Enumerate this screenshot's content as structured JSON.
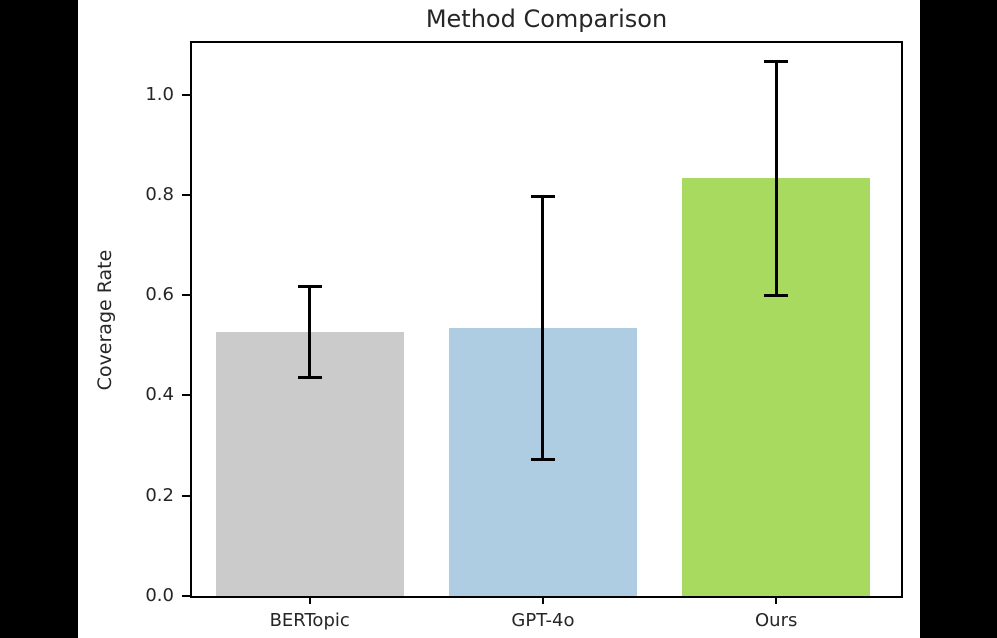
{
  "chart_data": {
    "type": "bar",
    "title": "Method Comparison",
    "xlabel": "",
    "ylabel": "Coverage Rate",
    "categories": [
      "BERTopic",
      "GPT-4o",
      "Ours"
    ],
    "values": [
      0.527,
      0.534,
      0.833
    ],
    "yerr": [
      0.092,
      0.263,
      0.234
    ],
    "bar_colors": [
      "#cbcbcb",
      "#aecde2",
      "#a9da60"
    ],
    "error_color": "#000000",
    "yticks": [
      0.0,
      0.2,
      0.4,
      0.6,
      0.8,
      1.0
    ],
    "ytick_labels": [
      "0.0",
      "0.2",
      "0.4",
      "0.6",
      "0.8",
      "1.0"
    ],
    "ylim": [
      0,
      1.103
    ],
    "grid": false,
    "legend": "none",
    "plot_background": "#ffffff",
    "letterbox_color": "#000000"
  }
}
